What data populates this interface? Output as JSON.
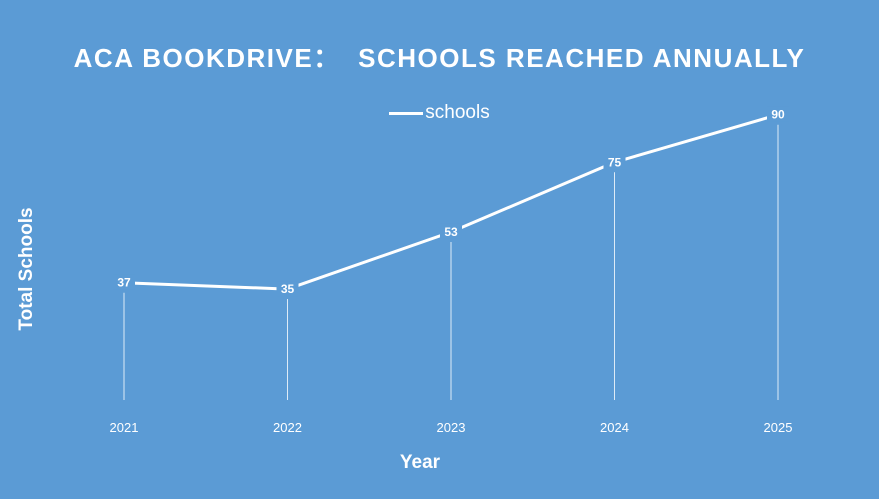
{
  "chart_data": {
    "type": "line",
    "title": "ACA BOOKDRIVE：  SCHOOLS REACHED ANNUALLY",
    "xlabel": "Year",
    "ylabel": "Total Schools",
    "categories": [
      "2021",
      "2022",
      "2023",
      "2024",
      "2025"
    ],
    "series": [
      {
        "name": "schools",
        "values": [
          37,
          35,
          53,
          75,
          90
        ]
      }
    ],
    "ylim": [
      0,
      100
    ],
    "grid": false,
    "legend_position": "top-center",
    "drop_lines": true,
    "data_labels": true,
    "colors": {
      "background": "#5b9bd5",
      "line": "#ffffff",
      "text": "#ffffff"
    }
  }
}
